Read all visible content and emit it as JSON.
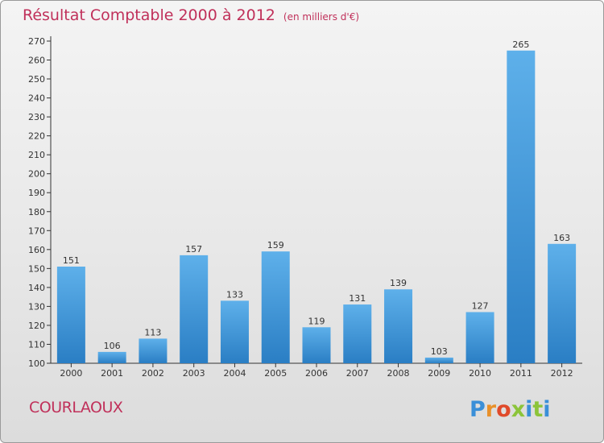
{
  "header": {
    "title": "Résultat Comptable 2000 à 2012",
    "subtitle": "(en milliers d'€)"
  },
  "footer": {
    "town": "COURLAOUX",
    "logo_text": "Proxiti"
  },
  "colors": {
    "accent": "#c0305a",
    "bar": "#3a93d6"
  },
  "chart_data": {
    "type": "bar",
    "title": "Résultat Comptable 2000 à 2012",
    "subtitle": "(en milliers d'€)",
    "xlabel": "",
    "ylabel": "",
    "categories": [
      "2000",
      "2001",
      "2002",
      "2003",
      "2004",
      "2005",
      "2006",
      "2007",
      "2008",
      "2009",
      "2010",
      "2011",
      "2012"
    ],
    "values": [
      151,
      106,
      113,
      157,
      133,
      159,
      119,
      131,
      139,
      103,
      127,
      265,
      163
    ],
    "ylim": [
      100,
      270
    ],
    "yticks": [
      100,
      110,
      120,
      130,
      140,
      150,
      160,
      170,
      180,
      190,
      200,
      210,
      220,
      230,
      240,
      250,
      260,
      270
    ],
    "grid": false,
    "legend": "none"
  }
}
